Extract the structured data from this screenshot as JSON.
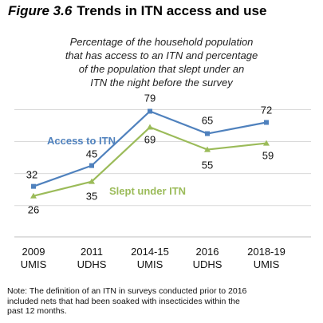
{
  "figure": {
    "number": "Figure 3.6",
    "title": "Trends in ITN access and use"
  },
  "subtitle_lines": [
    "Percentage of the household population",
    "that has access to an ITN and percentage",
    "of the population that slept under an",
    "ITN the night before the survey"
  ],
  "chart_data": {
    "type": "line",
    "categories": [
      [
        "2009",
        "UMIS"
      ],
      [
        "2011",
        "UDHS"
      ],
      [
        "2014-15",
        "UMIS"
      ],
      [
        "2016",
        "UDHS"
      ],
      [
        "2018-19",
        "UMIS"
      ]
    ],
    "series": [
      {
        "name": "Access to ITN",
        "values": [
          32,
          45,
          79,
          65,
          72
        ],
        "color": "#4f81bd",
        "marker": "square"
      },
      {
        "name": "Slept under ITN",
        "values": [
          26,
          35,
          69,
          55,
          59
        ],
        "color": "#9bbb59",
        "marker": "triangle"
      }
    ],
    "ylim": [
      0,
      100
    ],
    "grid": true,
    "legend": "inline labels"
  },
  "note_lines": [
    "Note: The definition of an ITN in surveys conducted prior to 2016",
    "included nets that had been soaked with insecticides within the",
    "past 12 months."
  ]
}
